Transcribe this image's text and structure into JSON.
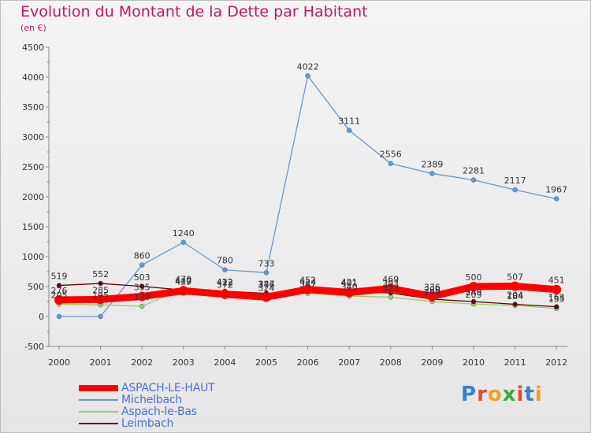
{
  "header": {
    "title": "Evolution du Montant de la Dette par Habitant",
    "subtitle": "(en €)"
  },
  "logo": {
    "letters": [
      "P",
      "r",
      "o",
      "x",
      "i",
      "t",
      "i"
    ],
    "colors": [
      "#3b7fd0",
      "#e84a2a",
      "#f0a020",
      "#3aaa3a",
      "#e84a2a",
      "#3b7fd0",
      "#f0a020"
    ]
  },
  "chart_data": {
    "type": "line",
    "title": "Evolution du Montant de la Dette par Habitant",
    "ylabel": "(en €)",
    "x": [
      "2000",
      "2001",
      "2002",
      "2003",
      "2004",
      "2005",
      "2006",
      "2007",
      "2008",
      "2009",
      "2010",
      "2011",
      "2012"
    ],
    "ylim": [
      -500,
      4500
    ],
    "yticks": [
      -500,
      0,
      500,
      1000,
      1500,
      2000,
      2500,
      3000,
      3500,
      4000,
      4500
    ],
    "grid": false,
    "legend_position": "bottom-left",
    "series": [
      {
        "name": "ASPACH-LE-HAUT",
        "color": "#ff0000",
        "width": 9,
        "marker": 6,
        "values": [
          276,
          285,
          335,
          429,
          372,
          324,
          452,
          401,
          469,
          336,
          500,
          507,
          451
        ],
        "labels": [
          "276",
          "285",
          "335",
          "429",
          "372",
          "324",
          "452",
          "401",
          "469",
          "336",
          "500",
          "507",
          "451"
        ]
      },
      {
        "name": "Michelbach",
        "color": "#6699cc",
        "width": 1.3,
        "marker": 3,
        "values": [
          0,
          0,
          860,
          1240,
          780,
          733,
          4022,
          3111,
          2556,
          2389,
          2281,
          2117,
          1967
        ],
        "labels": [
          "",
          "",
          "860",
          "1240",
          "780",
          "733",
          "4022",
          "3111",
          "2556",
          "2389",
          "2281",
          "2117",
          "1967"
        ]
      },
      {
        "name": "Aspach-le-Bas",
        "color": "#99cc66",
        "width": 1.3,
        "marker": 3,
        "values": [
          205,
          195,
          170,
          470,
          412,
          376,
          387,
          340,
          323,
          249,
          209,
          184,
          135
        ],
        "labels": [
          "205",
          "195",
          "170",
          "470",
          "412",
          "376",
          "387",
          "340",
          "323",
          "249",
          "209",
          "184",
          "135"
        ]
      },
      {
        "name": "Leimbach",
        "color": "#660000",
        "width": 1.3,
        "marker": 3,
        "values": [
          519,
          552,
          503,
          442,
          422,
          387,
          424,
          421,
          393,
          289,
          249,
          204,
          163
        ],
        "labels": [
          "519",
          "552",
          "503",
          "442",
          "422",
          "387",
          "424",
          "421",
          "393",
          "289",
          "249",
          "204",
          "163"
        ]
      }
    ]
  }
}
